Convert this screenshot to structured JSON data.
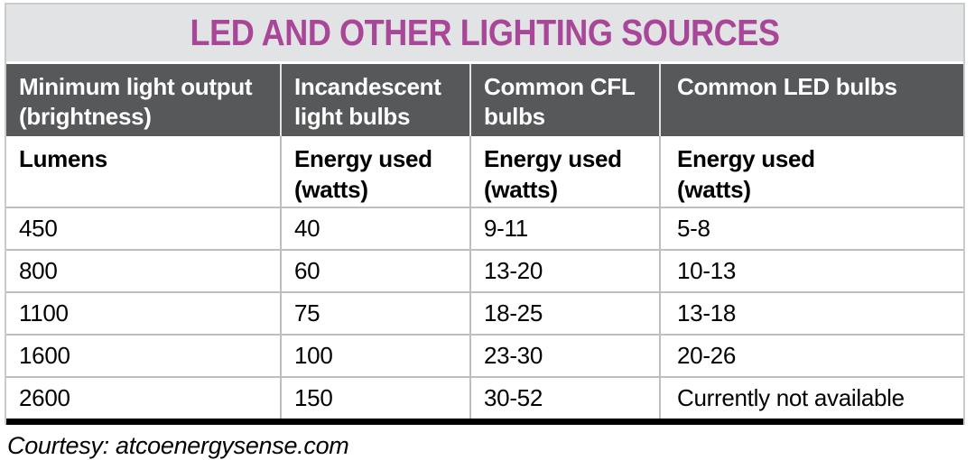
{
  "title": "LED AND OTHER LIGHTING SOURCES",
  "colors": {
    "title_text": "#a84697",
    "title_bar_bg": "#e2e3e5",
    "header_bg": "#57585a",
    "header_text": "#ffffff",
    "body_text": "#000000",
    "grid_line": "#bcbec0",
    "bottom_bar": "#000000"
  },
  "chart_data": {
    "type": "table",
    "title": "LED AND OTHER LIGHTING SOURCES",
    "columns": [
      "Minimum light output\n(brightness)",
      "Incandescent\nlight bulbs",
      "Common CFL\nbulbs",
      "Common LED bulbs"
    ],
    "subcolumns": [
      "Lumens",
      "Energy used\n(watts)",
      "Energy used\n(watts)",
      "Energy used\n(watts)"
    ],
    "rows": [
      [
        "450",
        "40",
        "9-11",
        "5-8"
      ],
      [
        "800",
        "60",
        "13-20",
        "10-13"
      ],
      [
        "1100",
        "75",
        "18-25",
        "13-18"
      ],
      [
        "1600",
        "100",
        "23-30",
        "20-26"
      ],
      [
        "2600",
        "150",
        "30-52",
        "Currently not available"
      ]
    ],
    "categories_lumens": [
      450,
      800,
      1100,
      1600,
      2600
    ],
    "series": [
      {
        "name": "Incandescent light bulbs — Energy used (watts)",
        "values": [
          "40",
          "60",
          "75",
          "100",
          "150"
        ]
      },
      {
        "name": "Common CFL bulbs — Energy used (watts)",
        "values": [
          "9-11",
          "13-20",
          "18-25",
          "23-30",
          "30-52"
        ]
      },
      {
        "name": "Common LED bulbs — Energy used (watts)",
        "values": [
          "5-8",
          "10-13",
          "13-18",
          "20-26",
          "Currently not available"
        ]
      }
    ]
  },
  "footer": {
    "source": "Courtesy: atcoenergysense.com"
  }
}
